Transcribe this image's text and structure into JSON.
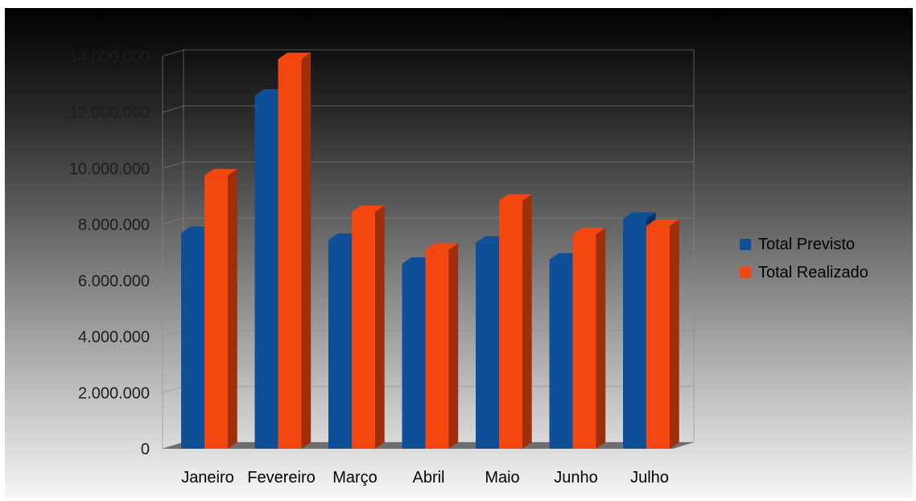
{
  "chart_data": {
    "type": "bar",
    "title": "",
    "xlabel": "",
    "ylabel": "",
    "categories": [
      "Janeiro",
      "Fevereiro",
      "Março",
      "Abril",
      "Maio",
      "Junho",
      "Julho"
    ],
    "series": [
      {
        "name": "Total Previsto",
        "color": "#0e4f97",
        "values": [
          7700000,
          12600000,
          7450000,
          6600000,
          7350000,
          6750000,
          8200000
        ]
      },
      {
        "name": "Total Realizado",
        "color": "#f4470f",
        "values": [
          9750000,
          13900000,
          8450000,
          7100000,
          8850000,
          7650000,
          7950000
        ]
      }
    ],
    "ylim": [
      0,
      14000000
    ],
    "yticks": [
      0,
      2000000,
      4000000,
      6000000,
      8000000,
      10000000,
      12000000,
      14000000
    ],
    "ytick_labels": [
      "0",
      "2.000.000",
      "4.000.000",
      "6.000.000",
      "8.000.000",
      "10.000.000",
      "12.000.000",
      "14.000.000"
    ],
    "grid": true,
    "style": "3d",
    "legend_position": "right"
  }
}
